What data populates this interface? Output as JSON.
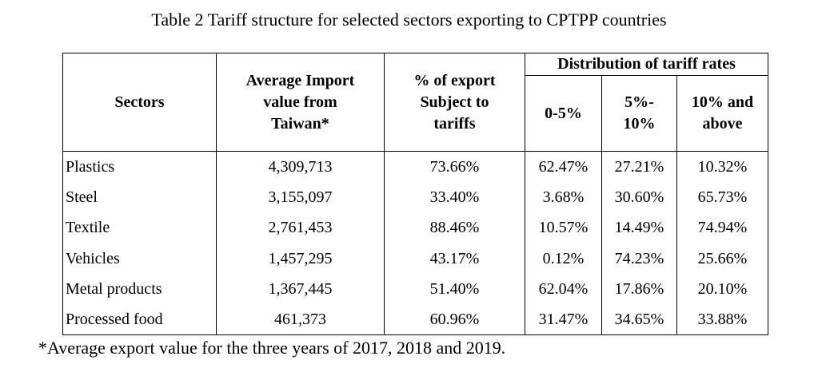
{
  "caption": "Table 2 Tariff structure for selected sectors exporting to CPTPP countries",
  "headers": {
    "sectors": "Sectors",
    "import_value": [
      "Average Import",
      "value from",
      "Taiwan*"
    ],
    "export_pct": [
      "% of export",
      "Subject to",
      "tariffs"
    ],
    "distribution": "Distribution of tariff rates",
    "bands": {
      "b1": [
        "0-5%"
      ],
      "b2": [
        "5%-",
        "10%"
      ],
      "b3": [
        "10% and",
        "above"
      ]
    }
  },
  "rows": [
    {
      "sector": "Plastics",
      "import_value": "4,309,713",
      "export_pct": "73.66%",
      "b1": "62.47%",
      "b2": "27.21%",
      "b3": "10.32%"
    },
    {
      "sector": "Steel",
      "import_value": "3,155,097",
      "export_pct": "33.40%",
      "b1": "3.68%",
      "b2": "30.60%",
      "b3": "65.73%"
    },
    {
      "sector": "Textile",
      "import_value": "2,761,453",
      "export_pct": "88.46%",
      "b1": "10.57%",
      "b2": "14.49%",
      "b3": "74.94%"
    },
    {
      "sector": "Vehicles",
      "import_value": "1,457,295",
      "export_pct": "43.17%",
      "b1": "0.12%",
      "b2": "74.23%",
      "b3": "25.66%"
    },
    {
      "sector": "Metal products",
      "import_value": "1,367,445",
      "export_pct": "51.40%",
      "b1": "62.04%",
      "b2": "17.86%",
      "b3": "20.10%"
    },
    {
      "sector": "Processed food",
      "import_value": "461,373",
      "export_pct": "60.96%",
      "b1": "31.47%",
      "b2": "34.65%",
      "b3": "33.88%"
    }
  ],
  "footnote": "*Average export value for the three years of 2017, 2018 and 2019."
}
